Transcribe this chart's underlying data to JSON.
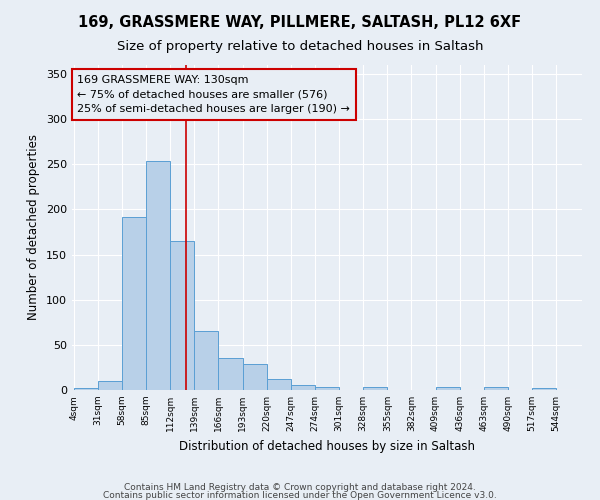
{
  "title": "169, GRASSMERE WAY, PILLMERE, SALTASH, PL12 6XF",
  "subtitle": "Size of property relative to detached houses in Saltash",
  "xlabel": "Distribution of detached houses by size in Saltash",
  "ylabel": "Number of detached properties",
  "bar_edges": [
    4,
    31,
    58,
    85,
    112,
    139,
    166,
    193,
    220,
    247,
    274,
    301,
    328,
    355,
    382,
    409,
    436,
    463,
    490,
    517,
    544
  ],
  "bar_heights": [
    2,
    10,
    192,
    254,
    165,
    65,
    36,
    29,
    12,
    5,
    3,
    0,
    3,
    0,
    0,
    3,
    0,
    3,
    0,
    2
  ],
  "bar_color": "#b8d0e8",
  "bar_edge_color": "#5a9fd4",
  "property_line_x": 130,
  "property_line_color": "#cc0000",
  "annotation_line1": "169 GRASSMERE WAY: 130sqm",
  "annotation_line2": "← 75% of detached houses are smaller (576)",
  "annotation_line3": "25% of semi-detached houses are larger (190) →",
  "annotation_box_color": "#cc0000",
  "ylim": [
    0,
    360
  ],
  "yticks": [
    0,
    50,
    100,
    150,
    200,
    250,
    300,
    350
  ],
  "background_color": "#e8eef5",
  "footer_line1": "Contains HM Land Registry data © Crown copyright and database right 2024.",
  "footer_line2": "Contains public sector information licensed under the Open Government Licence v3.0.",
  "title_fontsize": 10.5,
  "subtitle_fontsize": 9.5
}
